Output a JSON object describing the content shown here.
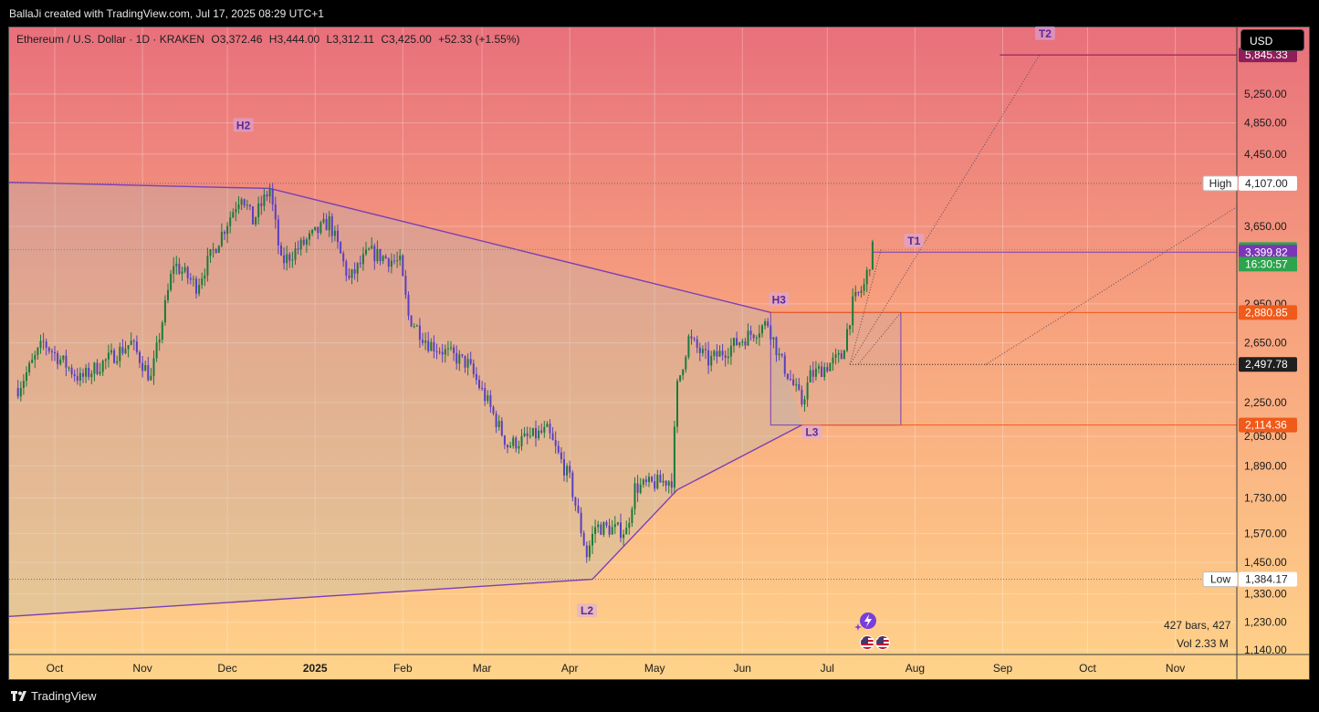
{
  "header": {
    "created_by": "BallaJi created with TradingView.com, Jul 17, 2025 08:29 UTC+1"
  },
  "legend": {
    "symbol": "Ethereum / U.S. Dollar · 1D · KRAKEN",
    "open": "O3,372.46",
    "high": "H3,444.00",
    "low": "L3,312.11",
    "close": "C3,425.00",
    "change": "+52.33 (+1.55%)"
  },
  "currency_button": "USD",
  "footer": {
    "logo_text": "TradingView",
    "bars_text": "427 bars, 427",
    "vol_text": "Vol 2.33 M"
  },
  "colors": {
    "bull": "#1b7a3a",
    "bear": "#5a3fc0",
    "pattern": "#7b3fb5",
    "orange": "#f05a1a",
    "price_green": "#2ea34d",
    "purple_tag": "#7d35b7",
    "dark_tag": "#1f1f1f",
    "bg_top": "#e9707a",
    "bg_bottom": "#ffd08a"
  },
  "chart_data": {
    "type": "candlestick",
    "symbol": "ETH/USD",
    "timeframe": "1D",
    "exchange": "KRAKEN",
    "y_axis": {
      "scale": "log",
      "range": [
        1140,
        6300
      ],
      "ticks": [
        "5,250.00",
        "4,850.00",
        "4,450.00",
        "3,650.00",
        "2,950.00",
        "2,650.00",
        "2,250.00",
        "2,050.00",
        "1,890.00",
        "1,730.00",
        "1,570.00",
        "1,450.00",
        "1,330.00",
        "1,230.00",
        "1,140.00"
      ]
    },
    "x_axis": {
      "labels": [
        "Oct",
        "Nov",
        "Dec",
        "2025",
        "Feb",
        "Mar",
        "Apr",
        "May",
        "Jun",
        "Jul",
        "Aug",
        "Sep",
        "Oct",
        "Nov"
      ]
    },
    "anchors": [
      {
        "date": "2024-09-18",
        "close": 2340
      },
      {
        "date": "2024-09-27",
        "close": 2650
      },
      {
        "date": "2024-10-10",
        "close": 2400
      },
      {
        "date": "2024-10-28",
        "close": 2650
      },
      {
        "date": "2024-11-04",
        "close": 2400
      },
      {
        "date": "2024-11-12",
        "close": 3300
      },
      {
        "date": "2024-11-20",
        "close": 3100
      },
      {
        "date": "2024-12-06",
        "close": 4000
      },
      {
        "date": "2024-12-10",
        "close": 3700
      },
      {
        "date": "2024-12-16",
        "close": 4050
      },
      {
        "date": "2024-12-20",
        "close": 3300
      },
      {
        "date": "2025-01-06",
        "close": 3700
      },
      {
        "date": "2025-01-13",
        "close": 3150
      },
      {
        "date": "2025-01-20",
        "close": 3400
      },
      {
        "date": "2025-01-31",
        "close": 3300
      },
      {
        "date": "2025-02-03",
        "close": 2850
      },
      {
        "date": "2025-02-10",
        "close": 2650
      },
      {
        "date": "2025-02-24",
        "close": 2500
      },
      {
        "date": "2025-03-03",
        "close": 2250
      },
      {
        "date": "2025-03-10",
        "close": 2000
      },
      {
        "date": "2025-03-24",
        "close": 2080
      },
      {
        "date": "2025-04-01",
        "close": 1820
      },
      {
        "date": "2025-04-07",
        "close": 1480
      },
      {
        "date": "2025-04-10",
        "close": 1600
      },
      {
        "date": "2025-04-21",
        "close": 1580
      },
      {
        "date": "2025-04-24",
        "close": 1780
      },
      {
        "date": "2025-05-07",
        "close": 1820
      },
      {
        "date": "2025-05-09",
        "close": 2350
      },
      {
        "date": "2025-05-13",
        "close": 2680
      },
      {
        "date": "2025-05-20",
        "close": 2520
      },
      {
        "date": "2025-06-10",
        "close": 2800
      },
      {
        "date": "2025-06-14",
        "close": 2550
      },
      {
        "date": "2025-06-22",
        "close": 2250
      },
      {
        "date": "2025-06-25",
        "close": 2420
      },
      {
        "date": "2025-07-06",
        "close": 2550
      },
      {
        "date": "2025-07-10",
        "close": 2950
      },
      {
        "date": "2025-07-14",
        "close": 3100
      },
      {
        "date": "2025-07-17",
        "close": 3425
      }
    ],
    "pattern_points": [
      {
        "label": "H2",
        "date": "2024-12-16",
        "price": 4050
      },
      {
        "label": "H3",
        "date": "2025-06-11",
        "price": 2880.85
      },
      {
        "label": "L2",
        "date": "2025-04-09",
        "price": 1384.17
      },
      {
        "label": "L3",
        "date": "2025-06-22",
        "price": 2114.36
      },
      {
        "label": "T1",
        "date": "2025-07-27",
        "price": 3399.82
      },
      {
        "label": "T2",
        "date": "2025-09-14",
        "price": 5845.33
      }
    ],
    "price_lines": [
      {
        "label": "High",
        "price": 4107.0,
        "text": "4,107.00"
      },
      {
        "label": "Low",
        "price": 1384.17,
        "text": "1,384.17"
      },
      {
        "price": 5845.33,
        "text": "5,845.33",
        "color": "#8e1e5a"
      },
      {
        "price": 3425.0,
        "text": "3,425.00",
        "color": "#2ea34d"
      },
      {
        "price": 3399.82,
        "text": "3,399.82",
        "color": "#7d35b7"
      },
      {
        "price": 2880.85,
        "text": "2,880.85",
        "color": "#f05a1a"
      },
      {
        "price": 2497.78,
        "text": "2,497.78",
        "color": "#1f1f1f"
      },
      {
        "price": 2114.36,
        "text": "2,114.36",
        "color": "#f05a1a"
      }
    ],
    "countdown": "16:30:57"
  }
}
